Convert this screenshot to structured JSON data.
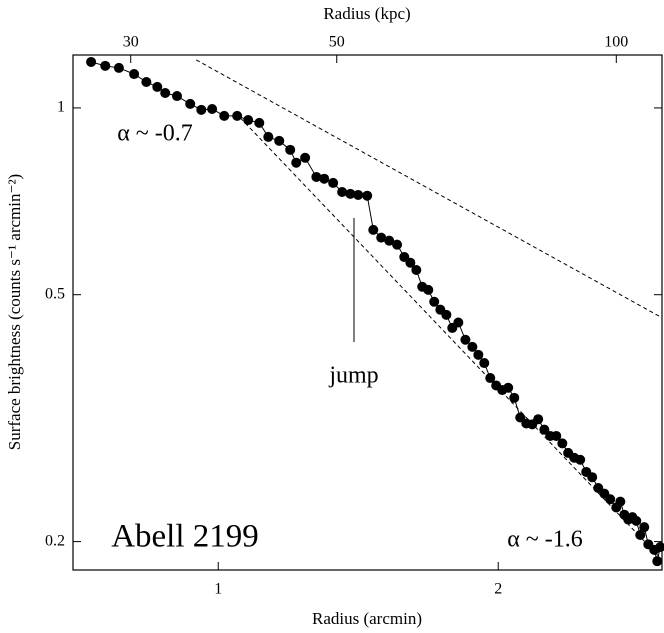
{
  "chart_data": {
    "type": "scatter",
    "connected": true,
    "log_x": true,
    "log_y": true,
    "x_label": "Radius (arcmin)",
    "x2_label": "Radius (kpc)",
    "y_label": "Surface brightness (counts s⁻¹ arcmin⁻²)",
    "xlim": [
      0.698,
      3.0
    ],
    "xticks": [
      1,
      2
    ],
    "x2lim": [
      26,
      112
    ],
    "x2ticks": [
      30,
      50,
      100
    ],
    "ylim": [
      0.18,
      1.217
    ],
    "yticks": [
      0.2,
      0.5,
      1
    ],
    "color": "#000000",
    "x": [
      0.73,
      0.756,
      0.782,
      0.812,
      0.837,
      0.86,
      0.877,
      0.903,
      0.933,
      0.959,
      0.985,
      1.015,
      1.048,
      1.077,
      1.107,
      1.132,
      1.163,
      1.195,
      1.213,
      1.24,
      1.275,
      1.3,
      1.329,
      1.359,
      1.387,
      1.414,
      1.446,
      1.468,
      1.497,
      1.527,
      1.557,
      1.585,
      1.609,
      1.633,
      1.657,
      1.682,
      1.707,
      1.733,
      1.759,
      1.785,
      1.812,
      1.844,
      1.876,
      1.904,
      1.932,
      1.961,
      1.99,
      2.02,
      2.05,
      2.081,
      2.112,
      2.144,
      2.176,
      2.208,
      2.242,
      2.275,
      2.309,
      2.344,
      2.378,
      2.414,
      2.45,
      2.487,
      2.524,
      2.562,
      2.601,
      2.639,
      2.679,
      2.706,
      2.733,
      2.76,
      2.788,
      2.815,
      2.843,
      2.871,
      2.9,
      2.943,
      2.965,
      2.987
    ],
    "values": [
      1.186,
      1.169,
      1.16,
      1.134,
      1.101,
      1.081,
      1.057,
      1.045,
      1.015,
      0.993,
      0.996,
      0.971,
      0.971,
      0.956,
      0.946,
      0.898,
      0.885,
      0.856,
      0.816,
      0.831,
      0.774,
      0.769,
      0.757,
      0.732,
      0.727,
      0.724,
      0.722,
      0.636,
      0.618,
      0.611,
      0.602,
      0.575,
      0.563,
      0.548,
      0.515,
      0.509,
      0.487,
      0.473,
      0.464,
      0.442,
      0.451,
      0.423,
      0.412,
      0.4,
      0.388,
      0.367,
      0.357,
      0.351,
      0.354,
      0.341,
      0.317,
      0.31,
      0.309,
      0.315,
      0.303,
      0.296,
      0.296,
      0.288,
      0.278,
      0.273,
      0.271,
      0.259,
      0.254,
      0.244,
      0.239,
      0.234,
      0.227,
      0.232,
      0.221,
      0.217,
      0.219,
      0.216,
      0.205,
      0.211,
      0.198,
      0.194,
      0.186,
      0.196
    ],
    "fits": [
      {
        "label": "α ~ -0.7",
        "x": [
          0.947,
          3.0
        ],
        "values": [
          1.195,
          0.459
        ]
      },
      {
        "label": "α ~ -1.6",
        "x": [
          1.056,
          3.0
        ],
        "values": [
          0.964,
          0.187
        ]
      }
    ],
    "annotations": [
      "jump",
      "Abell 2199"
    ]
  }
}
